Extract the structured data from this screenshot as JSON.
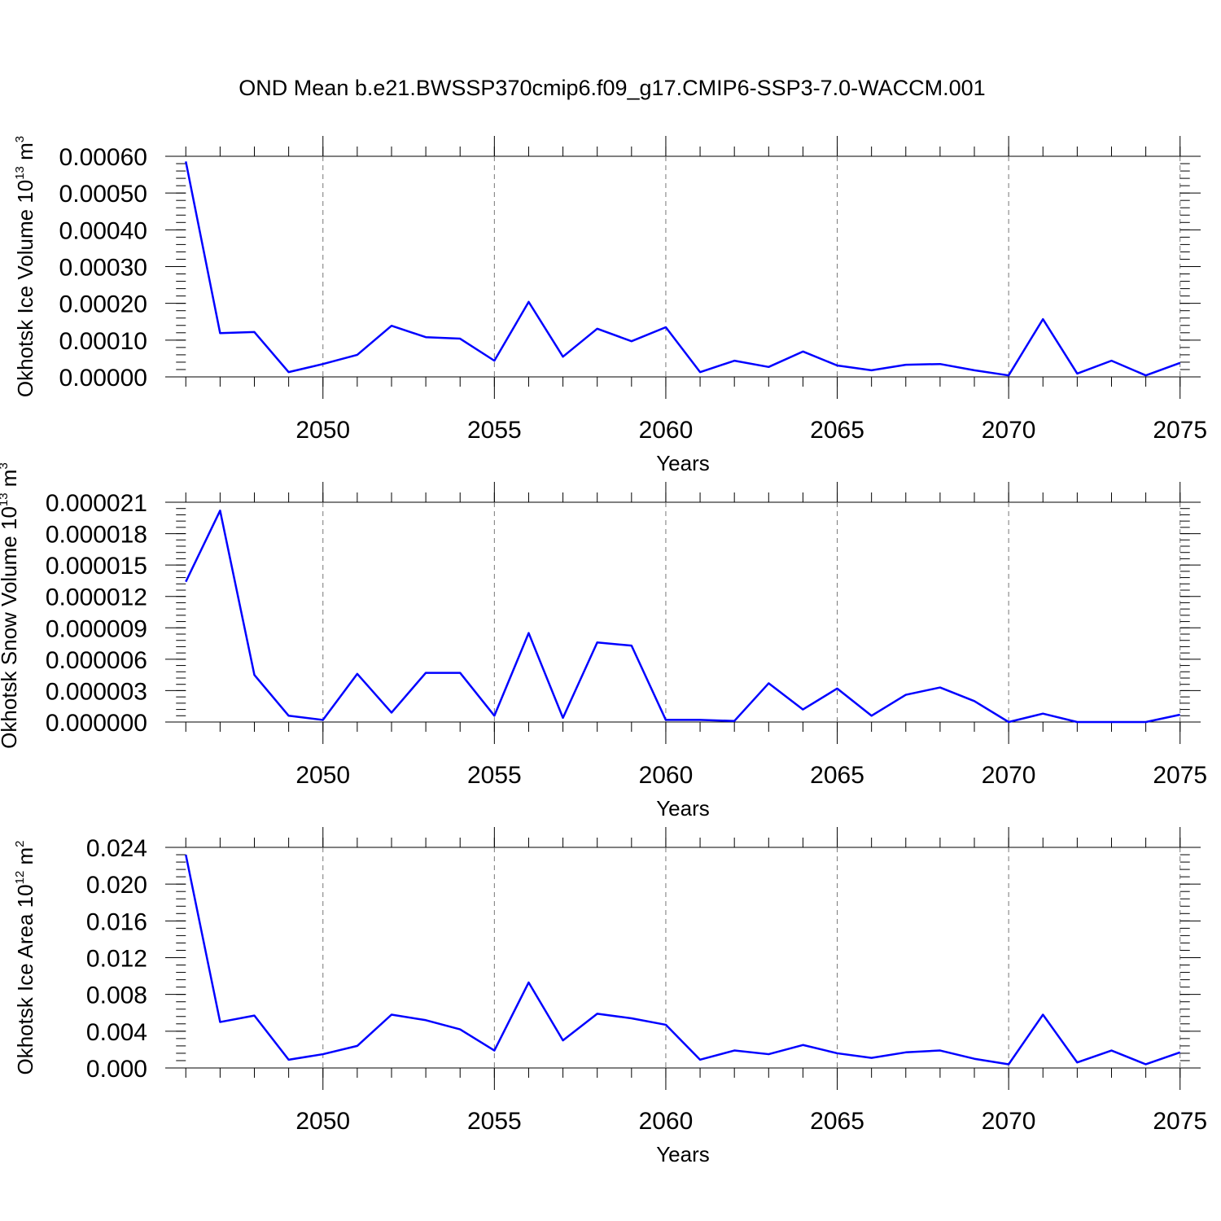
{
  "title": "OND Mean b.e21.BWSSP370cmip6.f09_g17.CMIP6-SSP3-7.0-WACCM.001",
  "chart_data": [
    {
      "type": "line",
      "xlabel": "Years",
      "ylabel": {
        "text": "Okhotsk Ice Volume 10",
        "exponent": "13",
        "unit": " m",
        "unit_exponent": "3"
      },
      "x": [
        2046,
        2047,
        2048,
        2049,
        2050,
        2051,
        2052,
        2053,
        2054,
        2055,
        2056,
        2057,
        2058,
        2059,
        2060,
        2061,
        2062,
        2063,
        2064,
        2065,
        2066,
        2067,
        2068,
        2069,
        2070,
        2071,
        2072,
        2073,
        2074,
        2075
      ],
      "series": [
        {
          "color": "#0000ff",
          "values": [
            0.000586,
            0.000119,
            0.000122,
            1.3e-05,
            3.5e-05,
            6e-05,
            0.000139,
            0.000108,
            0.000104,
            4.4e-05,
            0.000204,
            5.5e-05,
            0.000131,
            9.7e-05,
            0.000135,
            1.3e-05,
            4.4e-05,
            2.7e-05,
            6.9e-05,
            3.1e-05,
            1.8e-05,
            3.3e-05,
            3.5e-05,
            1.8e-05,
            4e-06,
            0.000157,
            9e-06,
            4.4e-05,
            4e-06,
            3.8e-05
          ]
        }
      ],
      "xlim": [
        2045.4,
        2075.6
      ],
      "xticks": [
        2050,
        2055,
        2060,
        2065,
        2070,
        2075
      ],
      "xminor_interval": 1,
      "ylim": [
        0,
        0.0006
      ],
      "yticks": [
        {
          "value": 0,
          "label": "0.00000"
        },
        {
          "value": 0.0001,
          "label": "0.00010"
        },
        {
          "value": 0.0002,
          "label": "0.00020"
        },
        {
          "value": 0.0003,
          "label": "0.00030"
        },
        {
          "value": 0.0004,
          "label": "0.00040"
        },
        {
          "value": 0.0005,
          "label": "0.00050"
        },
        {
          "value": 0.0006,
          "label": "0.00060"
        }
      ],
      "yminor_interval": 2e-05,
      "grid": "dashed-x"
    },
    {
      "type": "line",
      "xlabel": "Years",
      "ylabel": {
        "text": "Okhotsk Snow Volume 10",
        "exponent": "13",
        "unit": " m",
        "unit_exponent": "3"
      },
      "x": [
        2046,
        2047,
        2048,
        2049,
        2050,
        2051,
        2052,
        2053,
        2054,
        2055,
        2056,
        2057,
        2058,
        2059,
        2060,
        2061,
        2062,
        2063,
        2064,
        2065,
        2066,
        2067,
        2068,
        2069,
        2070,
        2071,
        2072,
        2073,
        2074,
        2075
      ],
      "series": [
        {
          "color": "#0000ff",
          "values": [
            1.34e-05,
            2.02e-05,
            4.5e-06,
            6e-07,
            2e-07,
            4.6e-06,
            9e-07,
            4.7e-06,
            4.7e-06,
            6e-07,
            8.5e-06,
            4e-07,
            7.6e-06,
            7.3e-06,
            2e-07,
            2e-07,
            1e-07,
            3.7e-06,
            1.2e-06,
            3.2e-06,
            6e-07,
            2.6e-06,
            3.3e-06,
            2e-06,
            0,
            8e-07,
            0,
            0,
            0,
            7e-07
          ]
        }
      ],
      "xlim": [
        2045.4,
        2075.6
      ],
      "xticks": [
        2050,
        2055,
        2060,
        2065,
        2070,
        2075
      ],
      "xminor_interval": 1,
      "ylim": [
        0,
        2.1e-05
      ],
      "yticks": [
        {
          "value": 0,
          "label": "0.000000"
        },
        {
          "value": 3e-06,
          "label": "0.000003"
        },
        {
          "value": 6e-06,
          "label": "0.000006"
        },
        {
          "value": 9e-06,
          "label": "0.000009"
        },
        {
          "value": 1.2e-05,
          "label": "0.000012"
        },
        {
          "value": 1.5e-05,
          "label": "0.000015"
        },
        {
          "value": 1.8e-05,
          "label": "0.000018"
        },
        {
          "value": 2.1e-05,
          "label": "0.000021"
        }
      ],
      "yminor_interval": 6e-07,
      "grid": "dashed-x"
    },
    {
      "type": "line",
      "xlabel": "Years",
      "ylabel": {
        "text": "Okhotsk Ice Area 10",
        "exponent": "12",
        "unit": " m",
        "unit_exponent": "2"
      },
      "x": [
        2046,
        2047,
        2048,
        2049,
        2050,
        2051,
        2052,
        2053,
        2054,
        2055,
        2056,
        2057,
        2058,
        2059,
        2060,
        2061,
        2062,
        2063,
        2064,
        2065,
        2066,
        2067,
        2068,
        2069,
        2070,
        2071,
        2072,
        2073,
        2074,
        2075
      ],
      "series": [
        {
          "color": "#0000ff",
          "values": [
            0.0232,
            0.005,
            0.0057,
            0.0009,
            0.0015,
            0.0024,
            0.0058,
            0.0052,
            0.0042,
            0.0019,
            0.0093,
            0.003,
            0.0059,
            0.0054,
            0.0047,
            0.0009,
            0.0019,
            0.0015,
            0.0025,
            0.0016,
            0.0011,
            0.0017,
            0.0019,
            0.001,
            0.0004,
            0.0058,
            0.0006,
            0.0019,
            0.0004,
            0.0017
          ]
        }
      ],
      "xlim": [
        2045.4,
        2075.6
      ],
      "xticks": [
        2050,
        2055,
        2060,
        2065,
        2070,
        2075
      ],
      "xminor_interval": 1,
      "ylim": [
        0,
        0.024
      ],
      "yticks": [
        {
          "value": 0,
          "label": "0.000"
        },
        {
          "value": 0.004,
          "label": "0.004"
        },
        {
          "value": 0.008,
          "label": "0.008"
        },
        {
          "value": 0.012,
          "label": "0.012"
        },
        {
          "value": 0.016,
          "label": "0.016"
        },
        {
          "value": 0.02,
          "label": "0.020"
        },
        {
          "value": 0.024,
          "label": "0.024"
        }
      ],
      "yminor_interval": 0.0008,
      "grid": "dashed-x"
    }
  ]
}
